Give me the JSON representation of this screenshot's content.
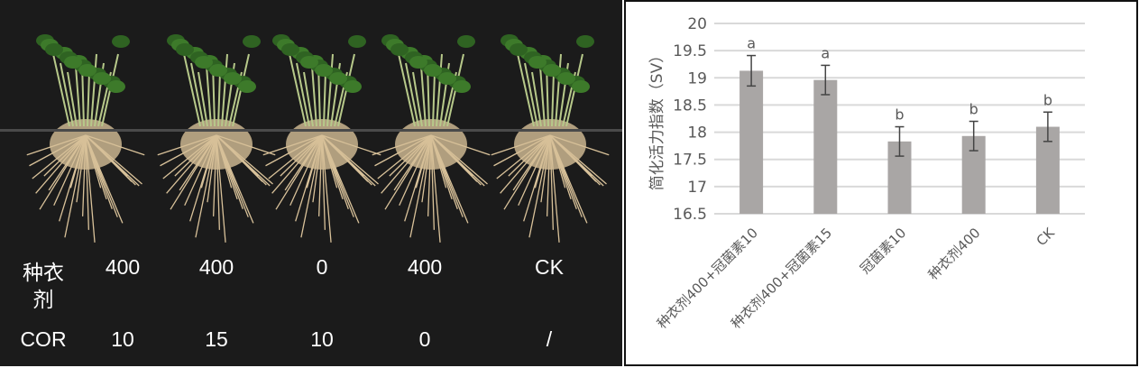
{
  "photo_table": {
    "row1_label": "种衣\n剂",
    "row1_label_a": "种衣",
    "row1_label_b": "剂",
    "row1_values": [
      "400",
      "400",
      "0",
      "400",
      "CK"
    ],
    "row2_label": "COR",
    "row2_values": [
      "10",
      "15",
      "10",
      "0",
      "/"
    ]
  },
  "chart_data": {
    "type": "bar",
    "title": "",
    "ylabel": "简化活力指数（SV）",
    "xlabel": "",
    "ylim": [
      16.5,
      20
    ],
    "yticks": [
      "16.5",
      "17",
      "17.5",
      "18",
      "18.5",
      "19",
      "19.5",
      "20"
    ],
    "grid": true,
    "categories": [
      "种衣剂400+冠菌素10",
      "种衣剂400+冠菌素15",
      "冠菌素10",
      "种衣剂400",
      "CK"
    ],
    "values": [
      19.13,
      18.96,
      17.83,
      17.93,
      18.1
    ],
    "errors": [
      0.28,
      0.27,
      0.27,
      0.27,
      0.27
    ],
    "significance_labels": [
      "a",
      "a",
      "b",
      "b",
      "b"
    ],
    "bar_color": "#a9a6a5"
  }
}
